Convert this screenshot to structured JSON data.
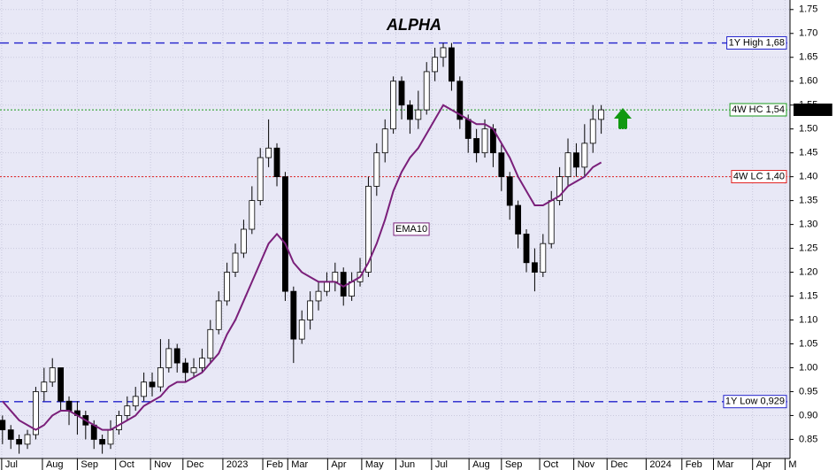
{
  "chart_data": {
    "type": "candlestick",
    "title": "ALPHA",
    "x": [
      0,
      1,
      2,
      3,
      4,
      5,
      6,
      7,
      8,
      9,
      10,
      11,
      12,
      13,
      14,
      15,
      16,
      17,
      18,
      19,
      20,
      21,
      22,
      23,
      24,
      25,
      26,
      27,
      28,
      29,
      30,
      31,
      32,
      33,
      34,
      35,
      36,
      37,
      38,
      39,
      40,
      41,
      42,
      43,
      44,
      45,
      46,
      47,
      48,
      49,
      50,
      51,
      52,
      53,
      54,
      55,
      56,
      57,
      58,
      59,
      60,
      61,
      62,
      63,
      64,
      65,
      66,
      67,
      68,
      69,
      70,
      71,
      72
    ],
    "open": [
      0.89,
      0.87,
      0.85,
      0.84,
      0.86,
      0.95,
      0.97,
      1.0,
      0.93,
      0.91,
      0.9,
      0.88,
      0.85,
      0.84,
      0.87,
      0.9,
      0.92,
      0.94,
      0.97,
      0.96,
      1.0,
      1.04,
      1.01,
      0.99,
      1.0,
      1.02,
      1.08,
      1.14,
      1.2,
      1.24,
      1.29,
      1.35,
      1.44,
      1.46,
      1.4,
      1.16,
      1.06,
      1.1,
      1.14,
      1.16,
      1.18,
      1.2,
      1.15,
      1.18,
      1.2,
      1.38,
      1.45,
      1.5,
      1.6,
      1.55,
      1.52,
      1.54,
      1.62,
      1.65,
      1.67,
      1.6,
      1.52,
      1.48,
      1.45,
      1.5,
      1.45,
      1.4,
      1.34,
      1.28,
      1.22,
      1.2,
      1.26,
      1.35,
      1.4,
      1.45,
      1.42,
      1.47,
      1.52
    ],
    "high": [
      0.9,
      0.88,
      0.86,
      0.87,
      0.96,
      1.0,
      1.02,
      1.0,
      0.94,
      0.93,
      0.91,
      0.89,
      0.86,
      0.89,
      0.91,
      0.94,
      0.96,
      0.99,
      0.99,
      1.06,
      1.06,
      1.05,
      1.02,
      1.02,
      1.04,
      1.1,
      1.16,
      1.22,
      1.26,
      1.31,
      1.38,
      1.46,
      1.52,
      1.47,
      1.41,
      1.17,
      1.12,
      1.16,
      1.18,
      1.2,
      1.22,
      1.21,
      1.2,
      1.23,
      1.4,
      1.47,
      1.52,
      1.61,
      1.61,
      1.56,
      1.58,
      1.64,
      1.67,
      1.68,
      1.68,
      1.61,
      1.53,
      1.5,
      1.52,
      1.51,
      1.47,
      1.41,
      1.35,
      1.29,
      1.25,
      1.28,
      1.37,
      1.42,
      1.48,
      1.47,
      1.51,
      1.55,
      1.55
    ],
    "low": [
      0.84,
      0.83,
      0.82,
      0.83,
      0.85,
      0.93,
      0.96,
      0.91,
      0.88,
      0.86,
      0.85,
      0.83,
      0.82,
      0.83,
      0.86,
      0.89,
      0.91,
      0.93,
      0.94,
      0.95,
      0.99,
      0.99,
      0.97,
      0.98,
      0.99,
      1.01,
      1.07,
      1.13,
      1.19,
      1.23,
      1.28,
      1.34,
      1.42,
      1.38,
      1.14,
      1.01,
      1.05,
      1.08,
      1.12,
      1.15,
      1.16,
      1.13,
      1.14,
      1.17,
      1.19,
      1.36,
      1.43,
      1.49,
      1.52,
      1.49,
      1.5,
      1.53,
      1.6,
      1.63,
      1.58,
      1.5,
      1.45,
      1.43,
      1.44,
      1.42,
      1.37,
      1.31,
      1.25,
      1.2,
      1.16,
      1.19,
      1.25,
      1.34,
      1.38,
      1.4,
      1.4,
      1.45,
      1.49
    ],
    "close": [
      0.87,
      0.85,
      0.84,
      0.86,
      0.95,
      0.97,
      1.0,
      0.93,
      0.91,
      0.9,
      0.88,
      0.85,
      0.84,
      0.87,
      0.9,
      0.92,
      0.94,
      0.97,
      0.96,
      1.0,
      1.04,
      1.01,
      0.99,
      1.0,
      1.02,
      1.08,
      1.14,
      1.2,
      1.24,
      1.29,
      1.35,
      1.44,
      1.46,
      1.4,
      1.16,
      1.06,
      1.1,
      1.14,
      1.16,
      1.18,
      1.2,
      1.15,
      1.18,
      1.2,
      1.38,
      1.45,
      1.5,
      1.6,
      1.55,
      1.52,
      1.54,
      1.62,
      1.65,
      1.67,
      1.6,
      1.52,
      1.48,
      1.45,
      1.5,
      1.45,
      1.4,
      1.34,
      1.28,
      1.22,
      1.2,
      1.26,
      1.35,
      1.4,
      1.45,
      1.42,
      1.47,
      1.52,
      1.54
    ],
    "ema": {
      "name": "EMA10",
      "color": "#7a1f7a",
      "values": [
        0.93,
        0.91,
        0.89,
        0.88,
        0.87,
        0.88,
        0.9,
        0.91,
        0.91,
        0.9,
        0.89,
        0.88,
        0.87,
        0.87,
        0.88,
        0.89,
        0.9,
        0.92,
        0.93,
        0.94,
        0.96,
        0.97,
        0.97,
        0.98,
        0.99,
        1.01,
        1.03,
        1.07,
        1.1,
        1.14,
        1.18,
        1.22,
        1.26,
        1.28,
        1.26,
        1.22,
        1.2,
        1.19,
        1.18,
        1.18,
        1.18,
        1.17,
        1.18,
        1.19,
        1.22,
        1.26,
        1.31,
        1.37,
        1.41,
        1.44,
        1.46,
        1.49,
        1.52,
        1.55,
        1.54,
        1.53,
        1.52,
        1.51,
        1.51,
        1.5,
        1.47,
        1.44,
        1.4,
        1.37,
        1.34,
        1.34,
        1.35,
        1.36,
        1.38,
        1.39,
        1.4,
        1.42,
        1.43
      ]
    },
    "reference_lines": [
      {
        "value": 1.68,
        "label": "1Y High 1,68",
        "color": "#2222cc",
        "style": "dashed"
      },
      {
        "value": 1.54,
        "label": "4W HC 1,54",
        "color": "#1a9a1a",
        "style": "dotted"
      },
      {
        "value": 1.4,
        "label": "4W LC 1,40",
        "color": "#e02020",
        "style": "dotted"
      },
      {
        "value": 0.929,
        "label": "1Y Low 0,929",
        "color": "#2222cc",
        "style": "dashed"
      }
    ],
    "last_price": {
      "value": 1.54,
      "label": "1.54000"
    },
    "xlim": [
      -0.3,
      94.7
    ],
    "xticks": [
      {
        "value": -0.1,
        "label": "Jul"
      },
      {
        "value": 4.8,
        "label": "Aug"
      },
      {
        "value": 9.0,
        "label": "Sep"
      },
      {
        "value": 13.6,
        "label": "Oct"
      },
      {
        "value": 17.8,
        "label": "Nov"
      },
      {
        "value": 21.7,
        "label": "Dec"
      },
      {
        "value": 26.5,
        "label": "2023"
      },
      {
        "value": 31.3,
        "label": "Feb"
      },
      {
        "value": 34.3,
        "label": "Mar"
      },
      {
        "value": 39.1,
        "label": "Apr"
      },
      {
        "value": 43.2,
        "label": "May"
      },
      {
        "value": 47.3,
        "label": "Jun"
      },
      {
        "value": 51.6,
        "label": "Jul"
      },
      {
        "value": 56.1,
        "label": "Aug"
      },
      {
        "value": 60.0,
        "label": "Sep"
      },
      {
        "value": 64.6,
        "label": "Oct"
      },
      {
        "value": 68.7,
        "label": "Nov"
      },
      {
        "value": 72.7,
        "label": "Dec"
      },
      {
        "value": 77.4,
        "label": "2024"
      },
      {
        "value": 81.7,
        "label": "Feb"
      },
      {
        "value": 85.5,
        "label": "Mar"
      },
      {
        "value": 90.2,
        "label": "Apr"
      },
      {
        "value": 94.1,
        "label": "M"
      }
    ],
    "ylim": [
      0.81,
      1.77
    ],
    "yticks": [
      {
        "value": 0.85,
        "label": "0.85"
      },
      {
        "value": 0.9,
        "label": "0.90"
      },
      {
        "value": 0.95,
        "label": "0.95"
      },
      {
        "value": 1.0,
        "label": "1.00"
      },
      {
        "value": 1.05,
        "label": "1.05"
      },
      {
        "value": 1.1,
        "label": "1.10"
      },
      {
        "value": 1.15,
        "label": "1.15"
      },
      {
        "value": 1.2,
        "label": "1.20"
      },
      {
        "value": 1.25,
        "label": "1.25"
      },
      {
        "value": 1.3,
        "label": "1.30"
      },
      {
        "value": 1.35,
        "label": "1.35"
      },
      {
        "value": 1.4,
        "label": "1.40"
      },
      {
        "value": 1.45,
        "label": "1.45"
      },
      {
        "value": 1.5,
        "label": "1.50"
      },
      {
        "value": 1.55,
        "label": "1.55"
      },
      {
        "value": 1.6,
        "label": "1.60"
      },
      {
        "value": 1.65,
        "label": "1.65"
      },
      {
        "value": 1.7,
        "label": "1.70"
      },
      {
        "value": 1.75,
        "label": "1.75"
      }
    ],
    "grid": true,
    "up_color": "#ffffff",
    "down_color": "#000000"
  }
}
